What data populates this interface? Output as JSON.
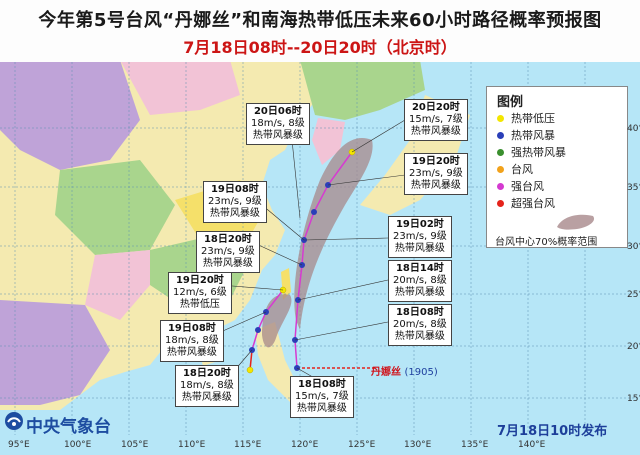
{
  "title": "今年第5号台风“丹娜丝”和南海热带低压未来60小时路径概率预报图",
  "subtitle": "7月18日08时--20日20时（北京时）",
  "legend": {
    "title": "图例",
    "items": [
      {
        "label": "热带低压",
        "color": "#f3e600"
      },
      {
        "label": "热带风暴",
        "color": "#2a3fb8"
      },
      {
        "label": "强热带风暴",
        "color": "#3a8f2e"
      },
      {
        "label": "台风",
        "color": "#f2a21b"
      },
      {
        "label": "强台风",
        "color": "#d43ad0"
      },
      {
        "label": "超强台风",
        "color": "#e5231b"
      }
    ],
    "prob_label": "台风中心70%概率范围"
  },
  "annotations": [
    {
      "time": "20日06时",
      "wind": "18m/s, 8级",
      "grade": "热带风暴级"
    },
    {
      "time": "20日20时",
      "wind": "15m/s, 7级",
      "grade": "热带风暴级"
    },
    {
      "time": "19日20时",
      "wind": "23m/s, 9级",
      "grade": "热带风暴级"
    },
    {
      "time": "19日08时",
      "wind": "23m/s, 9级",
      "grade": "热带风暴级"
    },
    {
      "time": "19日02时",
      "wind": "23m/s, 9级",
      "grade": "热带风暴级"
    },
    {
      "time": "18日20时",
      "wind": "23m/s, 9级",
      "grade": "热带风暴级"
    },
    {
      "time": "18日14时",
      "wind": "20m/s, 8级",
      "grade": "热带风暴级"
    },
    {
      "time": "19日20时",
      "wind": "12m/s, 6级",
      "grade": "热带低压"
    },
    {
      "time": "18日08时",
      "wind": "20m/s, 8级",
      "grade": "热带风暴级"
    },
    {
      "time": "19日08时",
      "wind": "18m/s, 8级",
      "grade": "热带风暴级"
    },
    {
      "time": "18日20时",
      "wind": "18m/s, 8级",
      "grade": "热带风暴级"
    },
    {
      "time": "18日08时",
      "wind": "15m/s, 7级",
      "grade": "热带风暴级"
    }
  ],
  "storm_label": {
    "name": "丹娜丝",
    "code": "(1905)"
  },
  "footer": {
    "agency": "中央气象台",
    "issued": "7月18日10时发布"
  },
  "axes": {
    "lon_labels": [
      "95°E",
      "100°E",
      "105°E",
      "110°E",
      "115°E",
      "120°E",
      "125°E",
      "130°E",
      "135°E",
      "140°E"
    ],
    "lat_labels": [
      "40°N",
      "35°N",
      "30°N",
      "25°N",
      "20°N",
      "15°N"
    ]
  },
  "colors": {
    "sea": "#b6e6f7",
    "land_light": "#f4eab0",
    "land_green": "#a9d58d",
    "land_purple": "#bfa3d8",
    "land_pink": "#f2c3d6",
    "land_yellow": "#f5e06a",
    "cone": "#a7888b",
    "track_main": "#d63bd1",
    "track_sea": "#e5231b"
  }
}
